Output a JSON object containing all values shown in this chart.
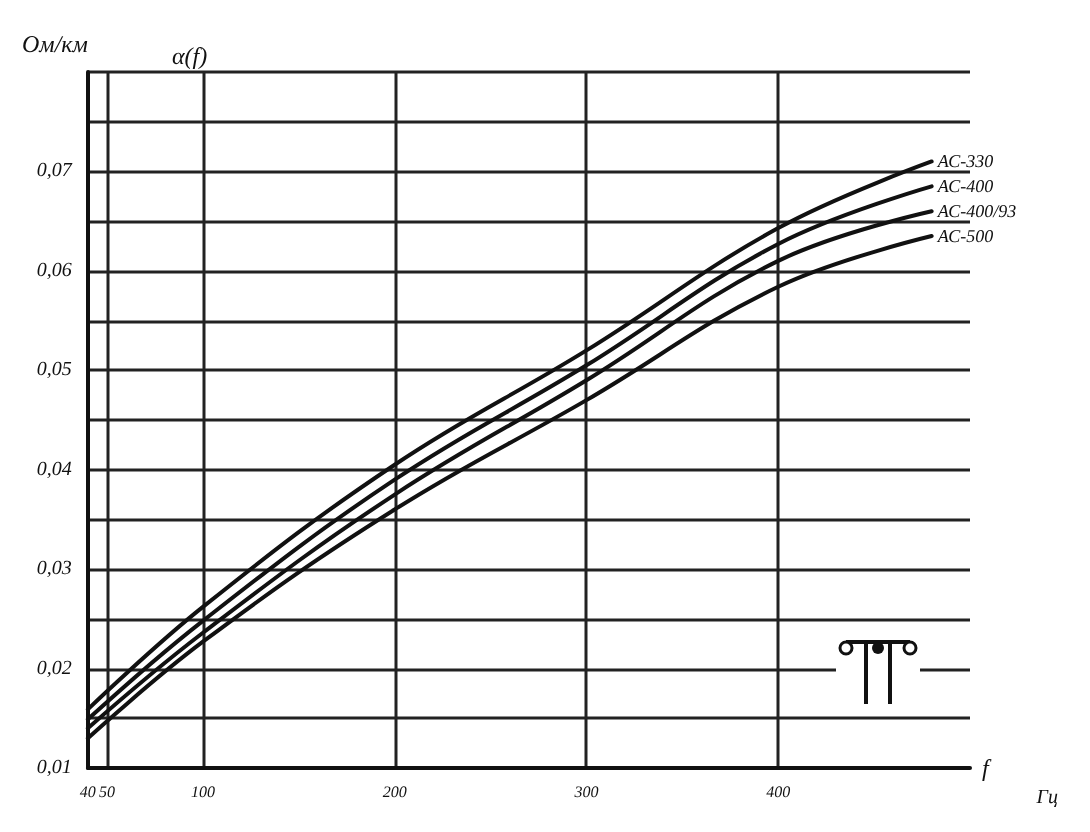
{
  "chart_data": {
    "type": "line",
    "ylabel": "Ом/км",
    "xlabel": "f",
    "annotations": [
      "α(f)",
      "Гц"
    ],
    "xlim": [
      40,
      500
    ],
    "xticks": [
      40,
      50,
      100,
      200,
      300,
      400
    ],
    "ylim": [
      0.01,
      0.08
    ],
    "yticks": [
      {
        "value": 0.01,
        "label": "0,01"
      },
      {
        "value": 0.015,
        "label": null
      },
      {
        "value": 0.02,
        "label": "0,02"
      },
      {
        "value": 0.025,
        "label": null
      },
      {
        "value": 0.03,
        "label": "0,03"
      },
      {
        "value": 0.035,
        "label": null
      },
      {
        "value": 0.04,
        "label": "0,04"
      },
      {
        "value": 0.045,
        "label": null
      },
      {
        "value": 0.05,
        "label": "0,05"
      },
      {
        "value": 0.055,
        "label": null
      },
      {
        "value": 0.06,
        "label": "0,06"
      },
      {
        "value": 0.065,
        "label": null
      },
      {
        "value": 0.07,
        "label": "0,07"
      },
      {
        "value": 0.075,
        "label": null
      },
      {
        "value": 0.08,
        "label": null
      }
    ],
    "grid": true,
    "marker": "none",
    "line_style": "solid",
    "legend": false,
    "x": [
      40,
      100,
      200,
      300,
      400,
      480
    ],
    "series": [
      {
        "name": "АС-330",
        "color": "#111111",
        "values": [
          0.0159,
          0.0262,
          0.0405,
          0.052,
          0.0643,
          0.071
        ]
      },
      {
        "name": "АС-400",
        "color": "#111111",
        "values": [
          0.0149,
          0.0248,
          0.039,
          0.0505,
          0.0627,
          0.0685
        ]
      },
      {
        "name": "АС-400/93",
        "color": "#111111",
        "values": [
          0.014,
          0.0236,
          0.0375,
          0.049,
          0.061,
          0.066
        ]
      },
      {
        "name": "АС-500",
        "color": "#111111",
        "values": [
          0.013,
          0.0227,
          0.036,
          0.047,
          0.0584,
          0.0635
        ]
      }
    ]
  }
}
